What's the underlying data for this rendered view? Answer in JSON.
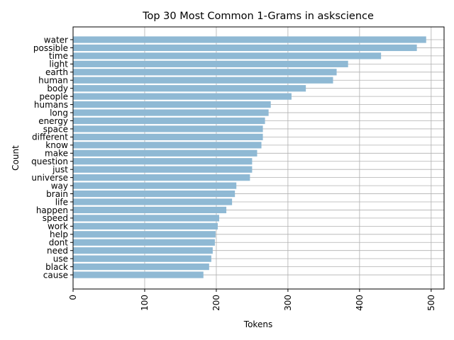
{
  "chart_data": {
    "type": "bar",
    "orientation": "horizontal",
    "title": "Top 30 Most Common 1-Grams in askscience",
    "xlabel": "Tokens",
    "ylabel": "Count",
    "xlim": [
      0,
      518
    ],
    "xticks": [
      0,
      100,
      200,
      300,
      400,
      500
    ],
    "grid": true,
    "bar_color": "#8fb9d4",
    "grid_color": "#b0b0b0",
    "categories": [
      "water",
      "possible",
      "time",
      "light",
      "earth",
      "human",
      "body",
      "people",
      "humans",
      "long",
      "energy",
      "space",
      "different",
      "know",
      "make",
      "question",
      "just",
      "universe",
      "way",
      "brain",
      "life",
      "happen",
      "speed",
      "work",
      "help",
      "dont",
      "need",
      "use",
      "black",
      "cause"
    ],
    "values": [
      493,
      480,
      430,
      384,
      368,
      363,
      325,
      305,
      276,
      273,
      268,
      265,
      265,
      263,
      257,
      250,
      250,
      247,
      228,
      226,
      222,
      214,
      204,
      202,
      199,
      198,
      195,
      193,
      190,
      182
    ]
  }
}
